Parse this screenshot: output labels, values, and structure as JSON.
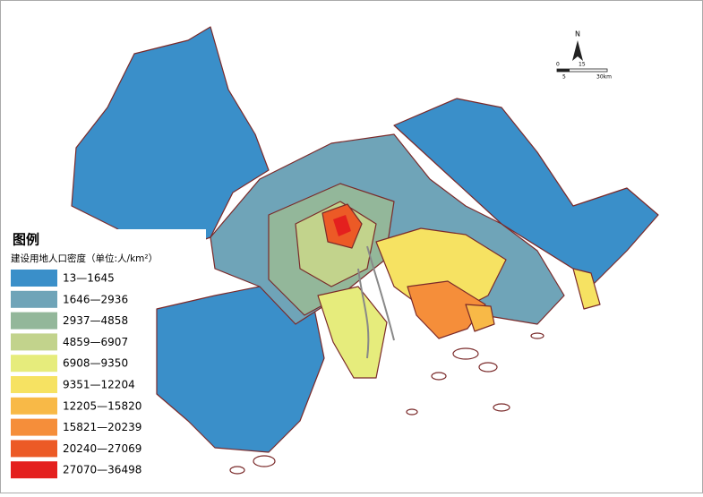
{
  "legend": {
    "title": "图例",
    "subtitle": "建设用地人口密度（单位:人/km²）",
    "items": [
      {
        "label": "13—1645",
        "color": "#3a8fc9"
      },
      {
        "label": "1646—2936",
        "color": "#6fa4b8"
      },
      {
        "label": "2937—4858",
        "color": "#93b79a"
      },
      {
        "label": "4859—6907",
        "color": "#c2d38c"
      },
      {
        "label": "6908—9350",
        "color": "#e6ec7c"
      },
      {
        "label": "9351—12204",
        "color": "#f6e262"
      },
      {
        "label": "12205—15820",
        "color": "#f8b947"
      },
      {
        "label": "15821—20239",
        "color": "#f58e3a"
      },
      {
        "label": "20240—27069",
        "color": "#ec5a26"
      },
      {
        "label": "27070—36498",
        "color": "#e4201e"
      }
    ]
  },
  "compass": {
    "north": "N",
    "scale_labels": [
      "0",
      "15",
      "5",
      "30km"
    ]
  }
}
